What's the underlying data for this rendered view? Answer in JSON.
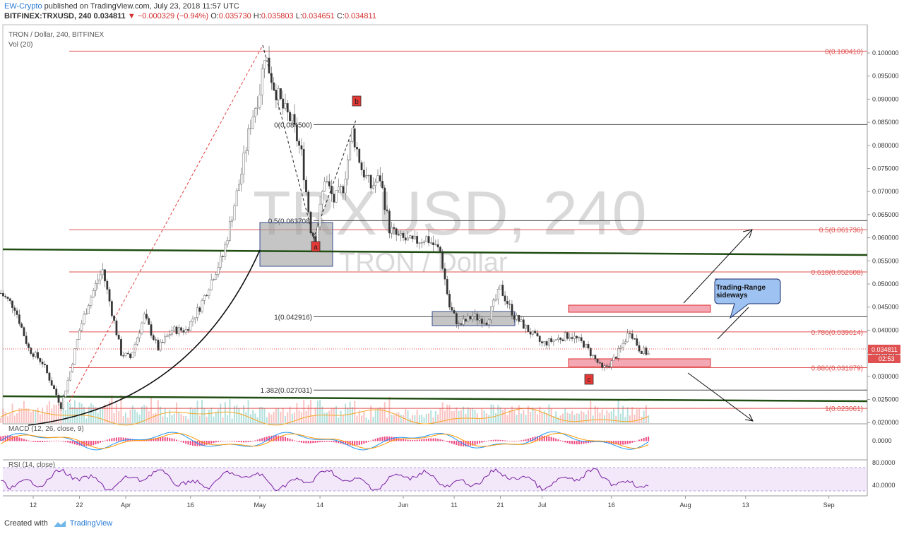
{
  "header": {
    "author": "EW-Crypto",
    "published": " published on TradingView.com, July 23, 2018 11:57 UTC",
    "symbol": "BITFINEX:TRXUSD, 240",
    "last": "0.034811",
    "change_arrow": "▼",
    "change": "−0.000329 (−0.94%)",
    "ohlc": {
      "o_label": "O:",
      "o": "0.035730",
      "h_label": "H:",
      "h": "0.035803",
      "l_label": "L:",
      "l": "0.034651",
      "c_label": "C:",
      "c": "0.034811"
    }
  },
  "pane_titles": {
    "main": "TRON / Dollar, 240, BITFINEX",
    "vol": "Vol (20)",
    "macd": "MACD (12, 26, close, 9)",
    "rsi": "RSI (14, close)"
  },
  "watermark": {
    "big": "TRXUSD, 240",
    "small": "TRON / Dollar"
  },
  "price_badges": {
    "last": "0.034811",
    "countdown": "02:53"
  },
  "chart_data": {
    "type": "candlestick",
    "symbol": "TRXUSD",
    "exchange": "BITFINEX",
    "timeframe": "240",
    "ylim": [
      0.017,
      0.104
    ],
    "y_ticks": [
      "0.100000",
      "0.095000",
      "0.090000",
      "0.085000",
      "0.080000",
      "0.075000",
      "0.070000",
      "0.065000",
      "0.060000",
      "0.055000",
      "0.050000",
      "0.045000",
      "0.040000",
      "0.035000",
      "0.030000",
      "0.025000",
      "0.020000"
    ],
    "x_ticks": [
      "12",
      "22",
      "Apr",
      "16",
      "May",
      "14",
      "Jun",
      "11",
      "21",
      "Jul",
      "16",
      "Aug",
      "13",
      "Sep"
    ],
    "fib_red": [
      {
        "label": "0(0.100410)",
        "value": 0.10041
      },
      {
        "label": "0.5(0.061736)",
        "value": 0.061736
      },
      {
        "label": "0.618(0.052608)",
        "value": 0.052608
      },
      {
        "label": "0.786(0.039614)",
        "value": 0.039614
      },
      {
        "label": "0.886(0.031879)",
        "value": 0.031879
      },
      {
        "label": "1(0.023061)",
        "value": 0.023061
      }
    ],
    "fib_black": [
      {
        "label": "0(0.084500)",
        "value": 0.0845
      },
      {
        "label": "0.5(0.063708)",
        "value": 0.063708
      },
      {
        "label": "1(0.042916)",
        "value": 0.042916
      },
      {
        "label": "1.382(0.027031)",
        "value": 0.027031
      }
    ],
    "wave_labels": [
      "a",
      "b",
      "c"
    ],
    "annotation": "Trading-Range\nsideways",
    "macd_ticks": [
      "0.0000"
    ],
    "rsi_ticks": [
      "80.0000",
      "40.0000"
    ],
    "path": [
      [
        "Mar 5",
        0.048
      ],
      [
        "Mar 8",
        0.045
      ],
      [
        "Mar 11",
        0.036
      ],
      [
        "Mar 14",
        0.033
      ],
      [
        "Mar 17",
        0.026
      ],
      [
        "Mar 18",
        0.0235
      ],
      [
        "Mar 20",
        0.031
      ],
      [
        "Mar 22",
        0.04
      ],
      [
        "Mar 24",
        0.046
      ],
      [
        "Mar 26",
        0.051
      ],
      [
        "Mar 27",
        0.053
      ],
      [
        "Mar 29",
        0.044
      ],
      [
        "Mar 31",
        0.035
      ],
      [
        "Apr 2",
        0.034
      ],
      [
        "Apr 5",
        0.043
      ],
      [
        "Apr 8",
        0.036
      ],
      [
        "Apr 11",
        0.04
      ],
      [
        "Apr 14",
        0.04
      ],
      [
        "Apr 17",
        0.045
      ],
      [
        "Apr 20",
        0.052
      ],
      [
        "Apr 22",
        0.056
      ],
      [
        "Apr 24",
        0.065
      ],
      [
        "Apr 26",
        0.074
      ],
      [
        "Apr 28",
        0.085
      ],
      [
        "Apr 30",
        0.092
      ],
      [
        "May 1",
        0.1
      ],
      [
        "May 3",
        0.093
      ],
      [
        "May 5",
        0.088
      ],
      [
        "May 7",
        0.085
      ],
      [
        "May 9",
        0.078
      ],
      [
        "May 11",
        0.062
      ],
      [
        "May 12",
        0.0595
      ],
      [
        "May 14",
        0.073
      ],
      [
        "May 16",
        0.068
      ],
      [
        "May 18",
        0.071
      ],
      [
        "May 20",
        0.083
      ],
      [
        "May 22",
        0.075
      ],
      [
        "May 24",
        0.071
      ],
      [
        "May 26",
        0.073
      ],
      [
        "May 28",
        0.062
      ],
      [
        "May 30",
        0.06
      ],
      [
        "Jun 2",
        0.059
      ],
      [
        "Jun 5",
        0.06
      ],
      [
        "Jun 8",
        0.057
      ],
      [
        "Jun 10",
        0.045
      ],
      [
        "Jun 12",
        0.041
      ],
      [
        "Jun 15",
        0.043
      ],
      [
        "Jun 18",
        0.042
      ],
      [
        "Jun 21",
        0.049
      ],
      [
        "Jun 24",
        0.043
      ],
      [
        "Jun 27",
        0.04
      ],
      [
        "Jun 30",
        0.037
      ],
      [
        "Jul 3",
        0.038
      ],
      [
        "Jul 6",
        0.039
      ],
      [
        "Jul 9",
        0.037
      ],
      [
        "Jul 12",
        0.033
      ],
      [
        "Jul 13",
        0.0315
      ],
      [
        "Jul 15",
        0.033
      ],
      [
        "Jul 17",
        0.036
      ],
      [
        "Jul 19",
        0.04
      ],
      [
        "Jul 21",
        0.036
      ],
      [
        "Jul 23",
        0.0348
      ]
    ]
  },
  "footer": {
    "created": "Created with",
    "brand": "TradingView"
  }
}
